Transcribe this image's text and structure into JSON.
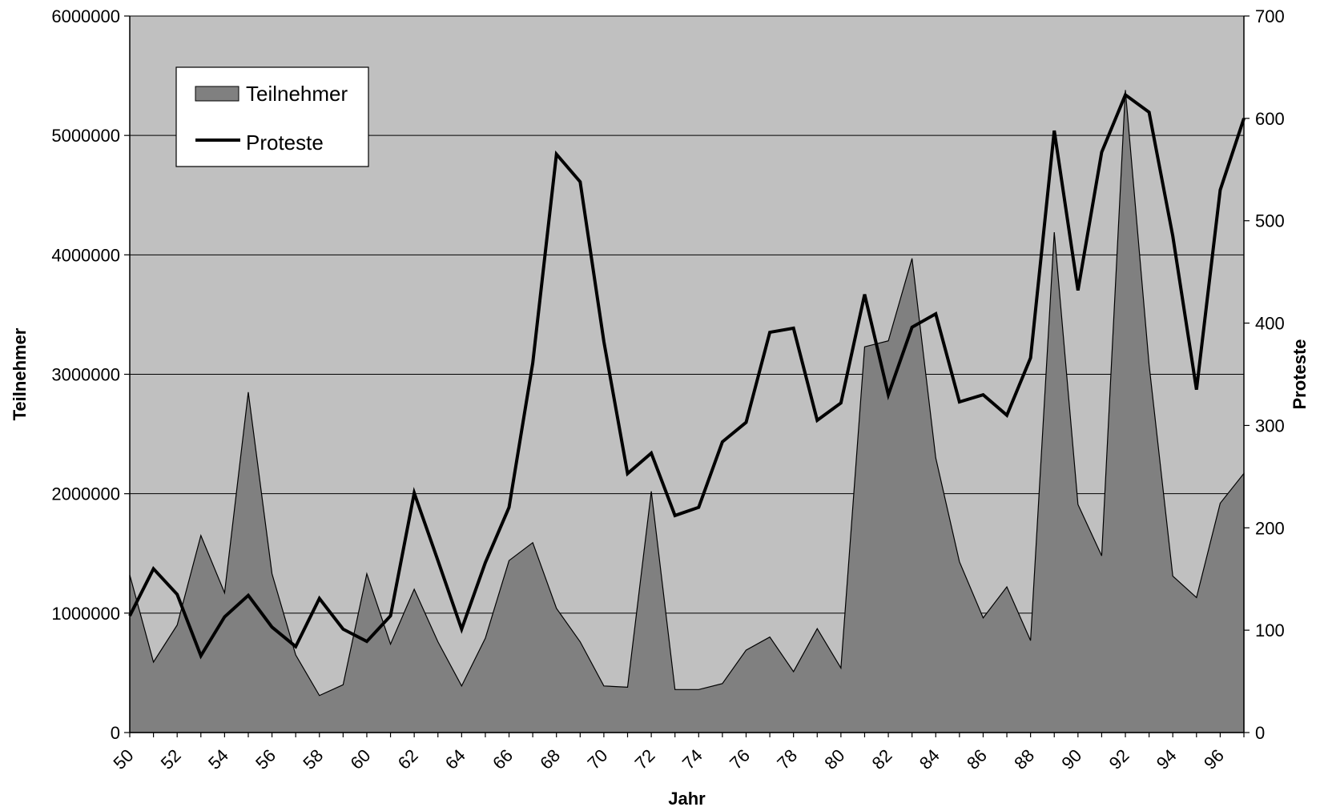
{
  "chart_data": {
    "type": "area",
    "title": "",
    "xlabel": "Jahr",
    "ylabel_left": "Teilnehmer",
    "ylabel_right": "Proteste",
    "x": [
      "50",
      "51",
      "52",
      "53",
      "54",
      "55",
      "56",
      "57",
      "58",
      "59",
      "60",
      "61",
      "62",
      "63",
      "64",
      "65",
      "66",
      "67",
      "68",
      "69",
      "70",
      "71",
      "72",
      "73",
      "74",
      "75",
      "76",
      "77",
      "78",
      "79",
      "80",
      "81",
      "82",
      "83",
      "84",
      "85",
      "86",
      "87",
      "88",
      "89",
      "90",
      "91",
      "92",
      "93",
      "94",
      "95",
      "96",
      "97"
    ],
    "x_tick_labels": [
      "50",
      "52",
      "54",
      "56",
      "58",
      "60",
      "62",
      "64",
      "66",
      "68",
      "70",
      "72",
      "74",
      "76",
      "78",
      "80",
      "82",
      "84",
      "86",
      "88",
      "90",
      "92",
      "94",
      "96"
    ],
    "ylim_left": [
      0,
      6000000
    ],
    "ylim_right": [
      0,
      700
    ],
    "yticks_left": [
      "0",
      "1000000",
      "2000000",
      "3000000",
      "4000000",
      "5000000",
      "6000000"
    ],
    "yticks_right": [
      "0",
      "100",
      "200",
      "300",
      "400",
      "500",
      "600",
      "700"
    ],
    "grid": true,
    "legend_position": "top-left",
    "colors": {
      "plot_background": "#c0c0c0",
      "area_fill": "#808080",
      "line": "#000000"
    },
    "series": [
      {
        "name": "Teilnehmer",
        "axis": "left",
        "kind": "area",
        "values": [
          1320000,
          590000,
          900000,
          1650000,
          1170000,
          2850000,
          1330000,
          650000,
          310000,
          400000,
          1330000,
          740000,
          1200000,
          760000,
          390000,
          790000,
          1440000,
          1590000,
          1040000,
          760000,
          390000,
          380000,
          2020000,
          360000,
          360000,
          410000,
          690000,
          800000,
          510000,
          870000,
          540000,
          3230000,
          3280000,
          3970000,
          2300000,
          1430000,
          960000,
          1220000,
          770000,
          4190000,
          1910000,
          1480000,
          5380000,
          3080000,
          1310000,
          1130000,
          1920000,
          2170000
        ]
      },
      {
        "name": "Proteste",
        "axis": "right",
        "kind": "line",
        "values": [
          114,
          160,
          135,
          75,
          113,
          134,
          103,
          84,
          131,
          101,
          89,
          114,
          234,
          168,
          101,
          166,
          220,
          361,
          565,
          538,
          382,
          253,
          273,
          212,
          220,
          284,
          303,
          391,
          395,
          305,
          322,
          428,
          330,
          396,
          409,
          323,
          330,
          310,
          366,
          588,
          432,
          567,
          623,
          606,
          485,
          335,
          530,
          600
        ]
      }
    ]
  }
}
